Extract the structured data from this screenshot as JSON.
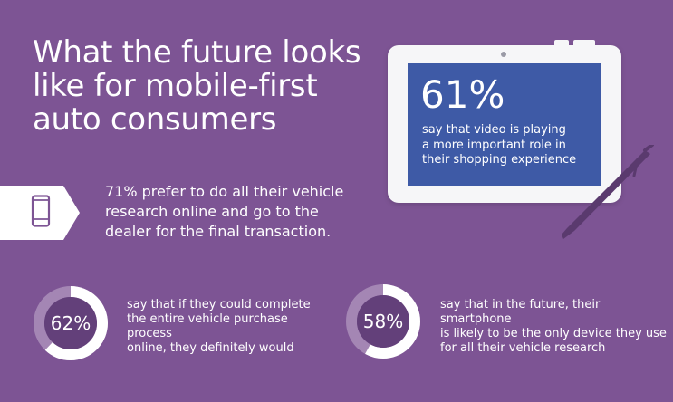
{
  "title": {
    "line1": "What the future looks",
    "line2": "like for mobile-first",
    "line3": "auto consumers"
  },
  "tablet_stat": {
    "percent": "61%",
    "line1": "say that video is playing",
    "line2": "a more important role in",
    "line3": "their shopping experience"
  },
  "main_stat": {
    "line1": "71% prefer to do all their vehicle",
    "line2": "research online and go to the",
    "line3": "dealer for the final transaction."
  },
  "stat_62": {
    "percent": "62%",
    "value": 62,
    "line1": "say that if they could complete",
    "line2": "the entire vehicle purchase process",
    "line3": "online, they definitely would"
  },
  "stat_58": {
    "percent": "58%",
    "value": 58,
    "line1": "say that in the future, their smartphone",
    "line2": "is likely to be the only device they use",
    "line3": "for all their vehicle research"
  },
  "icons": {
    "phone": "smartphone-icon",
    "tablet": "tablet-illustration",
    "stylus": "stylus-pen-illustration"
  },
  "colors": {
    "background": "#7d5494",
    "tablet_screen": "#3e5aa6",
    "donut_fill": "#ffffff",
    "donut_track": "#a486b4",
    "donut_center": "#63407a",
    "stylus": "#5a3a6e"
  }
}
